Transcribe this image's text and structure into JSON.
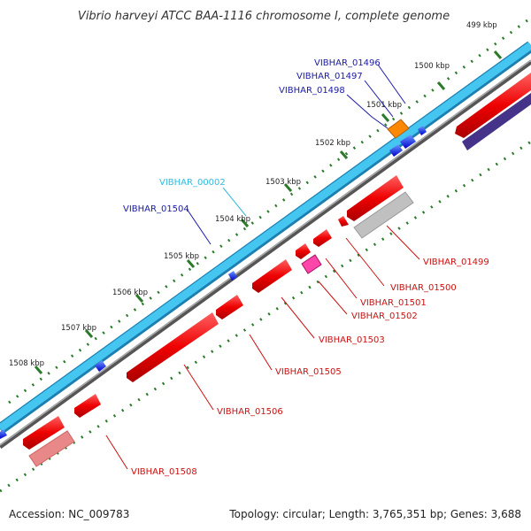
{
  "title": "Vibrio harveyi ATCC BAA-1116 chromosome I, complete genome",
  "footer": {
    "accession": "Accession: NC_009783",
    "summary": "Topology: circular; Length: 3,765,351 bp; Genes: 3,688"
  },
  "ticks": [
    "499 kbp",
    "1500 kbp",
    "1501 kbp",
    "1502 kbp",
    "1503 kbp",
    "1504 kbp",
    "1505 kbp",
    "1506 kbp",
    "1507 kbp",
    "1508 kbp"
  ],
  "gene_labels": [
    {
      "text": "VIBHAR_01496",
      "color": "#1a1aa8"
    },
    {
      "text": "VIBHAR_01497",
      "color": "#1a1aa8"
    },
    {
      "text": "VIBHAR_01498",
      "color": "#1a1aa8"
    },
    {
      "text": "VIBHAR_00002",
      "color": "#33bbdd"
    },
    {
      "text": "VIBHAR_01504",
      "color": "#1a1aa8"
    },
    {
      "text": "VIBHAR_01499",
      "color": "#cc1111"
    },
    {
      "text": "VIBHAR_01500",
      "color": "#cc1111"
    },
    {
      "text": "VIBHAR_01501",
      "color": "#cc1111"
    },
    {
      "text": "VIBHAR_01502",
      "color": "#cc1111"
    },
    {
      "text": "VIBHAR_01503",
      "color": "#cc1111"
    },
    {
      "text": "VIBHAR_01505",
      "color": "#cc1111"
    },
    {
      "text": "VIBHAR_01506",
      "color": "#cc1111"
    },
    {
      "text": "VIBHAR_01508",
      "color": "#cc1111"
    }
  ],
  "colors": {
    "cds_forward": "#3a9bdc",
    "gene_track": "#44c6f0",
    "cds_reverse": "#ee1111",
    "rna": "#ff8800",
    "other_feature": "#ff44aa",
    "pseudogene": "#c0c0c0",
    "backbone": "#777777",
    "tick": "#2a7a2a"
  }
}
